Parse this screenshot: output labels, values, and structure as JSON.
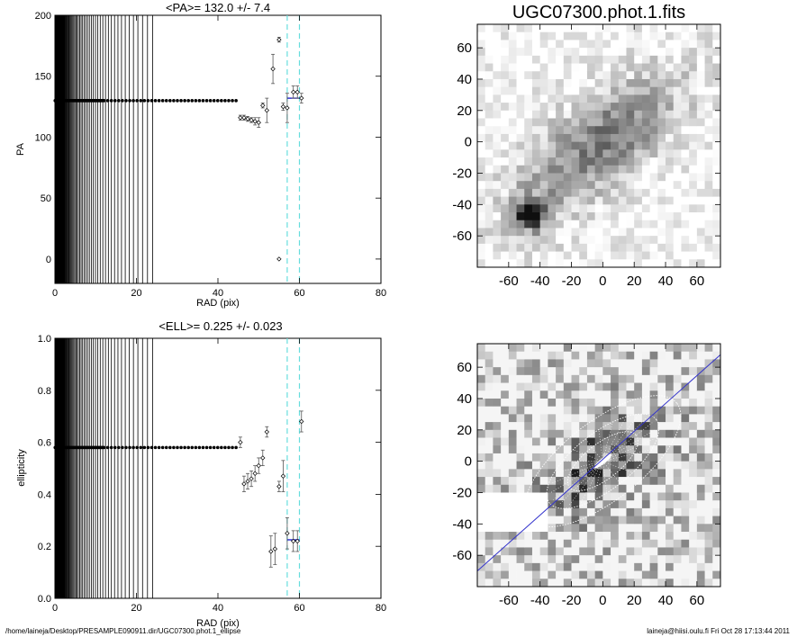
{
  "footer": {
    "path": "/home/laineja/Desktop/PRESAMPLE090911.dir/UGC07300.phot.1_ellipse",
    "stamp": "laineja@hiisi.oulu.fi  Fri Oct 28 17:13:44 2011"
  },
  "colors": {
    "mean_line": "#0000cc",
    "dashed": "#66dddd",
    "slit": "#3333cc",
    "ellipse": "#ffffff"
  },
  "chart_data": [
    {
      "type": "scatter",
      "title": "<PA>= 132.0 +/-   7.4",
      "xlabel": "RAD (pix)",
      "ylabel": "PA",
      "xlim": [
        0,
        80
      ],
      "ylim": [
        -20,
        200
      ],
      "xticks": [
        0,
        20,
        40,
        60,
        80
      ],
      "yticks": [
        0,
        50,
        100,
        150,
        200
      ],
      "mean_value": 132.0,
      "mean_range": [
        57,
        60
      ],
      "dashed_x": [
        57,
        60
      ],
      "flat_value": 130,
      "flat_range": [
        0,
        45
      ],
      "points": [
        {
          "x": 45.5,
          "y": 116,
          "err": 2
        },
        {
          "x": 46.4,
          "y": 116,
          "err": 2
        },
        {
          "x": 47.3,
          "y": 115,
          "err": 2
        },
        {
          "x": 48.2,
          "y": 114,
          "err": 2
        },
        {
          "x": 49.1,
          "y": 113,
          "err": 3
        },
        {
          "x": 50.0,
          "y": 112,
          "err": 4
        },
        {
          "x": 51.0,
          "y": 126,
          "err": 2
        },
        {
          "x": 52.0,
          "y": 122,
          "err": 10
        },
        {
          "x": 53.5,
          "y": 156,
          "err": 12
        },
        {
          "x": 55.0,
          "y": 180,
          "err": 2
        },
        {
          "x": 55.0,
          "y": 0,
          "err": 0
        },
        {
          "x": 56.0,
          "y": 125,
          "err": 3
        },
        {
          "x": 57.0,
          "y": 124,
          "err": 12
        },
        {
          "x": 58.5,
          "y": 137,
          "err": 5
        },
        {
          "x": 59.5,
          "y": 137,
          "err": 5
        },
        {
          "x": 60.5,
          "y": 132,
          "err": 4
        }
      ]
    },
    {
      "type": "heatmap",
      "title": "UGC07300.phot.1.fits",
      "xlim": [
        -80,
        75
      ],
      "ylim": [
        -80,
        75
      ],
      "xticks": [
        -60,
        -40,
        -20,
        0,
        20,
        40,
        60
      ],
      "yticks": [
        -60,
        -40,
        -20,
        0,
        20,
        40,
        60
      ],
      "source_peak": [
        -46,
        -47
      ]
    },
    {
      "type": "scatter",
      "title": "<ELL>= 0.225 +/-  0.023",
      "xlabel": "RAD (pix)",
      "ylabel": "ellipticity",
      "xlim": [
        0,
        80
      ],
      "ylim": [
        0.0,
        1.0
      ],
      "xticks": [
        0,
        20,
        40,
        60,
        80
      ],
      "yticks": [
        0.0,
        0.2,
        0.4,
        0.6,
        0.8,
        1.0
      ],
      "mean_value": 0.225,
      "mean_range": [
        57,
        60
      ],
      "dashed_x": [
        57,
        60
      ],
      "flat_value": 0.58,
      "flat_range": [
        0,
        45
      ],
      "points": [
        {
          "x": 45.5,
          "y": 0.6,
          "err": 0.02
        },
        {
          "x": 46.4,
          "y": 0.44,
          "err": 0.03
        },
        {
          "x": 47.3,
          "y": 0.45,
          "err": 0.03
        },
        {
          "x": 48.2,
          "y": 0.46,
          "err": 0.03
        },
        {
          "x": 49.1,
          "y": 0.48,
          "err": 0.03
        },
        {
          "x": 50.0,
          "y": 0.51,
          "err": 0.03
        },
        {
          "x": 51.0,
          "y": 0.54,
          "err": 0.03
        },
        {
          "x": 52.0,
          "y": 0.64,
          "err": 0.02
        },
        {
          "x": 53.0,
          "y": 0.18,
          "err": 0.06
        },
        {
          "x": 54.0,
          "y": 0.19,
          "err": 0.06
        },
        {
          "x": 55.0,
          "y": 0.43,
          "err": 0.02
        },
        {
          "x": 56.0,
          "y": 0.47,
          "err": 0.06
        },
        {
          "x": 57.0,
          "y": 0.25,
          "err": 0.06
        },
        {
          "x": 58.5,
          "y": 0.22,
          "err": 0.04
        },
        {
          "x": 59.5,
          "y": 0.22,
          "err": 0.04
        },
        {
          "x": 60.5,
          "y": 0.68,
          "err": 0.04
        }
      ]
    },
    {
      "type": "heatmap",
      "title": "",
      "xlim": [
        -80,
        75
      ],
      "ylim": [
        -80,
        75
      ],
      "xticks": [
        -60,
        -40,
        -20,
        0,
        20,
        40,
        60
      ],
      "yticks": [
        -60,
        -40,
        -20,
        0,
        20,
        40,
        60
      ],
      "ellipse_pa_deg": 38,
      "ellipse_semi_axes": [
        60,
        25
      ],
      "slit_line": [
        [
          -80,
          -70
        ],
        [
          75,
          68
        ]
      ]
    }
  ]
}
